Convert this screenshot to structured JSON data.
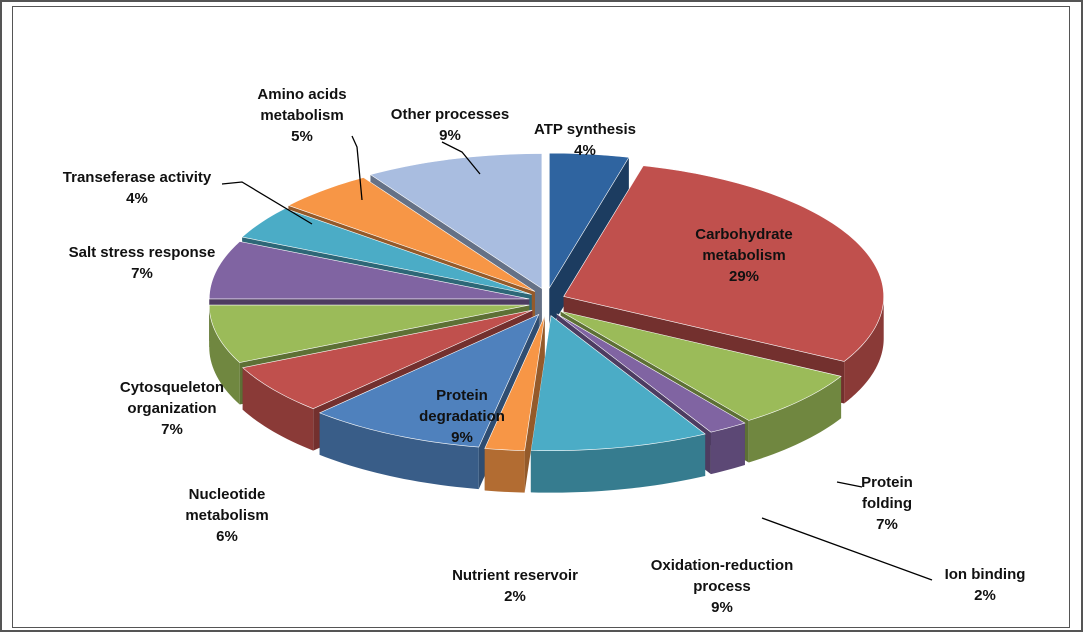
{
  "chart_data": {
    "type": "pie",
    "categories": [
      "ATP synthesis",
      "Carbohydrate metabolism",
      "Protein folding",
      "Ion binding",
      "Oxidation-reduction process",
      "Nutrient reservoir",
      "Protein degradation",
      "Nucleotide metabolism",
      "Cytosqueleton organization",
      "Salt stress response",
      "Transeferase activity",
      "Amino acids metabolism",
      "Other processes"
    ],
    "values": [
      4,
      29,
      7,
      2,
      9,
      2,
      9,
      6,
      7,
      7,
      4,
      5,
      9
    ],
    "value_labels": [
      "4%",
      "29%",
      "7%",
      "2%",
      "9%",
      "2%",
      "9%",
      "6%",
      "7%",
      "7%",
      "4%",
      "5%",
      "9%"
    ],
    "colors": [
      "#2f64a0",
      "#c0504d",
      "#9bbb59",
      "#8064a2",
      "#4bacc6",
      "#f79646",
      "#4f81bd",
      "#c0504d",
      "#9bbb59",
      "#8064a2",
      "#4bacc6",
      "#f79646",
      "#a9bde0"
    ]
  }
}
